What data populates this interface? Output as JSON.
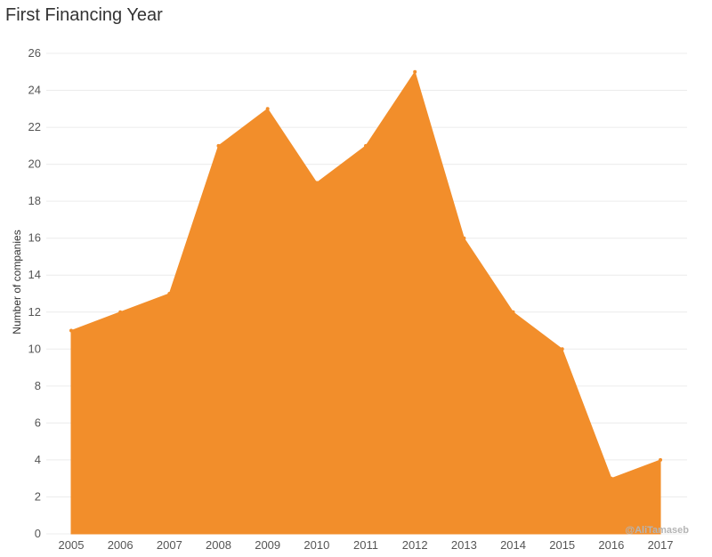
{
  "chart_data": {
    "type": "area",
    "title": "First Financing Year",
    "xlabel": "",
    "ylabel": "Number of companies",
    "categories": [
      "2005",
      "2006",
      "2007",
      "2008",
      "2009",
      "2010",
      "2011",
      "2012",
      "2013",
      "2014",
      "2015",
      "2016",
      "2017"
    ],
    "values": [
      11,
      12,
      13,
      21,
      23,
      19,
      21,
      25,
      16,
      12,
      10,
      3,
      4
    ],
    "ylim": [
      0,
      26
    ],
    "yticks": [
      0,
      2,
      4,
      6,
      8,
      10,
      12,
      14,
      16,
      18,
      20,
      22,
      24,
      26
    ],
    "grid": true,
    "fill_color": "#F28E2B",
    "watermark": "@AliTamaseb"
  }
}
